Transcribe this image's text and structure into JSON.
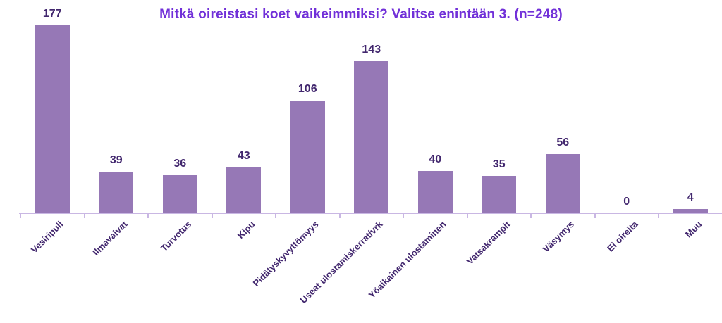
{
  "chart_data": {
    "type": "bar",
    "title": "Mitkä oireistasi koet vaikeimmiksi? Valitse enintään 3. (n=248)",
    "categories": [
      "Vesiripuli",
      "Ilmavaivat",
      "Turvotus",
      "Kipu",
      "Pidätyskyvyttömyys",
      "Useat ulostamiskerrat/vrk",
      "Yöaikainen ulostaminen",
      "Vatsakrampit",
      "Väsymys",
      "Ei oireita",
      "Muu"
    ],
    "values": [
      177,
      39,
      36,
      43,
      106,
      143,
      40,
      35,
      56,
      0,
      4
    ],
    "xlabel": "",
    "ylabel": "",
    "ylim": [
      0,
      180
    ],
    "grid": false,
    "legend_position": "none",
    "value_labels_shown": true,
    "x_tick_label_rotation_deg": 45,
    "colors": {
      "bar": "#9678b6",
      "axis": "#c9b7e3",
      "value_label": "#42276e",
      "tick_label": "#42276e",
      "title": "#7130d8",
      "background": "#ffffff"
    }
  }
}
